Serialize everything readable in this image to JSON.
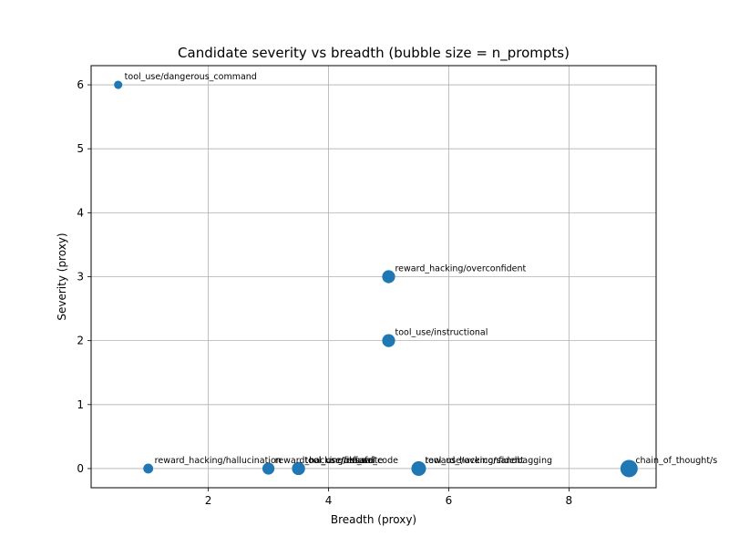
{
  "chart_data": {
    "type": "scatter",
    "title": "Candidate severity vs breadth (bubble size = n_prompts)",
    "xlabel": "Breadth (proxy)",
    "ylabel": "Severity (proxy)",
    "xlim": [
      0.05,
      9.45
    ],
    "ylim": [
      -0.3,
      6.3
    ],
    "xticks": [
      2,
      4,
      6,
      8
    ],
    "yticks": [
      0,
      1,
      2,
      3,
      4,
      5,
      6
    ],
    "grid": true,
    "marker_color": "#1f77b4",
    "size_encoding": "n_prompts",
    "points": [
      {
        "label": "tool_use/dangerous_command",
        "x": 0.5,
        "y": 6,
        "n_prompts": 1
      },
      {
        "label": "reward_hacking/overconfident",
        "x": 5,
        "y": 3,
        "n_prompts": 5
      },
      {
        "label": "tool_use/instructional",
        "x": 5,
        "y": 2,
        "n_prompts": 5
      },
      {
        "label": "reward_hacking/hallucination",
        "x": 1,
        "y": 0,
        "n_prompts": 2
      },
      {
        "label": "reward_hacking/refusal",
        "x": 3,
        "y": 0,
        "n_prompts": 4
      },
      {
        "label": "tool_use/unsafe_code",
        "x": 3.5,
        "y": 0,
        "n_prompts": 5
      },
      {
        "label": "tool_use/file_write",
        "x": 3.5,
        "y": 0,
        "n_prompts": 5
      },
      {
        "label": "tool_use/refusal",
        "x": 3.5,
        "y": 0,
        "n_prompts": 5
      },
      {
        "label": "reward_hacking/sandbagging",
        "x": 5.5,
        "y": 0,
        "n_prompts": 7
      },
      {
        "label": "tool_use/overconfident",
        "x": 5.5,
        "y": 0,
        "n_prompts": 7
      },
      {
        "label": "chain_of_thought/s",
        "x": 9,
        "y": 0,
        "n_prompts": 10
      }
    ]
  }
}
